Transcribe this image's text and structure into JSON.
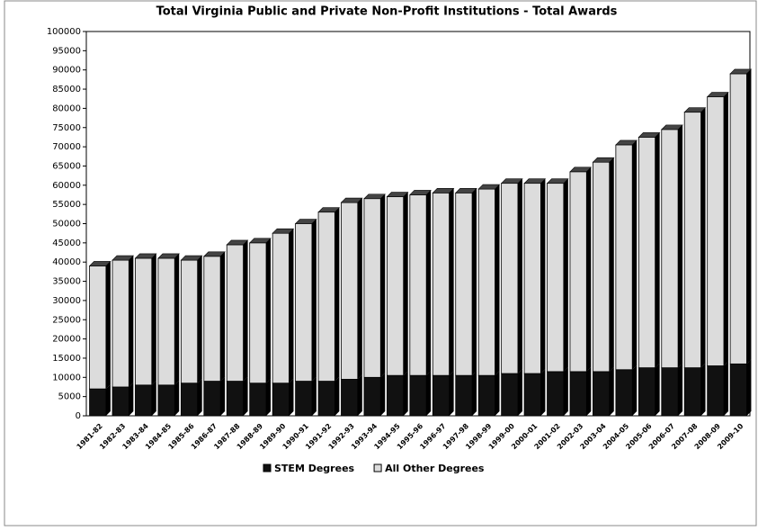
{
  "chart_data": {
    "type": "stacked_bar",
    "title": "Total Virginia Public and Private Non-Profit Institutions - Total Awards",
    "categories": [
      "1981-82",
      "1982-83",
      "1983-84",
      "1984-85",
      "1985-86",
      "1986-87",
      "1987-88",
      "1988-89",
      "1989-90",
      "1990-91",
      "1991-92",
      "1992-93",
      "1993-94",
      "1994-95",
      "1995-96",
      "1996-97",
      "1997-98",
      "1998-99",
      "1999-00",
      "2000-01",
      "2001-02",
      "2002-03",
      "2003-04",
      "2004-05",
      "2005-06",
      "2006-07",
      "2007-08",
      "2008-09",
      "2009-10"
    ],
    "series": [
      {
        "name": "STEM Degrees",
        "color": "#111111",
        "values": [
          7000,
          7500,
          8000,
          8000,
          8500,
          9000,
          9000,
          8500,
          8500,
          9000,
          9000,
          9500,
          10000,
          10500,
          10500,
          10500,
          10500,
          10500,
          11000,
          11000,
          11500,
          11500,
          11500,
          12000,
          12500,
          12500,
          12500,
          13000,
          13500
        ]
      },
      {
        "name": "All Other Degrees",
        "color": "#dcdcdc",
        "values": [
          32000,
          33000,
          33000,
          33000,
          32000,
          32500,
          35500,
          36500,
          39000,
          41000,
          44000,
          46000,
          46500,
          46500,
          47000,
          47500,
          47500,
          48500,
          49500,
          49500,
          49000,
          52000,
          54500,
          58500,
          60000,
          62000,
          66500,
          70000,
          75500
        ]
      }
    ],
    "ylim": [
      0,
      100000
    ],
    "yticks": [
      0,
      5000,
      10000,
      15000,
      20000,
      25000,
      30000,
      35000,
      40000,
      45000,
      50000,
      55000,
      60000,
      65000,
      70000,
      75000,
      80000,
      85000,
      90000,
      95000,
      100000
    ],
    "legend": "bottom"
  }
}
